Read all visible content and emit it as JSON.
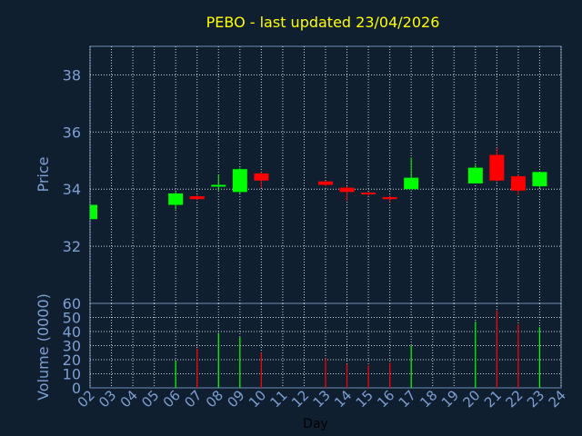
{
  "chart_data": [
    {
      "type": "candlestick",
      "title": "PEBO - last updated 23/04/2026",
      "ylabel": "Price",
      "ylim": [
        30.0,
        39.0
      ],
      "yticks": [
        32,
        34,
        36,
        38
      ],
      "grid": true,
      "up_color": "#00ff00",
      "down_color": "#ff0000",
      "categories": [
        "02",
        "03",
        "04",
        "05",
        "06",
        "07",
        "08",
        "09",
        "10",
        "11",
        "12",
        "13",
        "14",
        "15",
        "16",
        "17",
        "18",
        "19",
        "20",
        "21",
        "22",
        "23",
        "24"
      ],
      "candles": [
        {
          "day": "02",
          "open": 32.95,
          "high": 33.45,
          "low": 32.95,
          "close": 33.45
        },
        {
          "day": "06",
          "open": 33.45,
          "high": 33.9,
          "low": 33.3,
          "close": 33.85
        },
        {
          "day": "07",
          "open": 33.75,
          "high": 33.8,
          "low": 33.62,
          "close": 33.65
        },
        {
          "day": "08",
          "open": 34.12,
          "high": 34.5,
          "low": 33.95,
          "close": 34.15
        },
        {
          "day": "09",
          "open": 33.9,
          "high": 34.75,
          "low": 33.85,
          "close": 34.7
        },
        {
          "day": "10",
          "open": 34.55,
          "high": 34.6,
          "low": 34.05,
          "close": 34.3
        },
        {
          "day": "13",
          "open": 34.27,
          "high": 34.3,
          "low": 34.1,
          "close": 34.15
        },
        {
          "day": "14",
          "open": 34.05,
          "high": 34.1,
          "low": 33.6,
          "close": 33.9
        },
        {
          "day": "15",
          "open": 33.88,
          "high": 33.9,
          "low": 33.75,
          "close": 33.82
        },
        {
          "day": "16",
          "open": 33.72,
          "high": 33.78,
          "low": 33.55,
          "close": 33.65
        },
        {
          "day": "17",
          "open": 34.0,
          "high": 35.1,
          "low": 34.0,
          "close": 34.4
        },
        {
          "day": "20",
          "open": 34.2,
          "high": 34.85,
          "low": 34.2,
          "close": 34.75
        },
        {
          "day": "21",
          "open": 35.2,
          "high": 35.45,
          "low": 34.25,
          "close": 34.3
        },
        {
          "day": "22",
          "open": 34.45,
          "high": 34.5,
          "low": 33.8,
          "close": 33.95
        },
        {
          "day": "23",
          "open": 34.1,
          "high": 34.6,
          "low": 34.05,
          "close": 34.6
        }
      ]
    },
    {
      "type": "bar",
      "xlabel": "Day",
      "ylabel": "Volume (0000)",
      "ylim": [
        0,
        60
      ],
      "yticks": [
        0,
        10,
        20,
        30,
        40,
        50,
        60
      ],
      "grid": true,
      "categories": [
        "02",
        "03",
        "04",
        "05",
        "06",
        "07",
        "08",
        "09",
        "10",
        "11",
        "12",
        "13",
        "14",
        "15",
        "16",
        "17",
        "18",
        "19",
        "20",
        "21",
        "22",
        "23",
        "24"
      ],
      "bars": [
        {
          "day": "06",
          "value": 19,
          "direction": "up"
        },
        {
          "day": "07",
          "value": 28,
          "direction": "down"
        },
        {
          "day": "08",
          "value": 39,
          "direction": "up"
        },
        {
          "day": "09",
          "value": 36,
          "direction": "up"
        },
        {
          "day": "10",
          "value": 25,
          "direction": "down"
        },
        {
          "day": "13",
          "value": 21,
          "direction": "down"
        },
        {
          "day": "14",
          "value": 17,
          "direction": "down"
        },
        {
          "day": "15",
          "value": 16,
          "direction": "down"
        },
        {
          "day": "16",
          "value": 18,
          "direction": "down"
        },
        {
          "day": "17",
          "value": 30,
          "direction": "up"
        },
        {
          "day": "20",
          "value": 47,
          "direction": "up"
        },
        {
          "day": "21",
          "value": 55,
          "direction": "down"
        },
        {
          "day": "22",
          "value": 45,
          "direction": "down"
        },
        {
          "day": "23",
          "value": 43,
          "direction": "up"
        }
      ]
    }
  ]
}
